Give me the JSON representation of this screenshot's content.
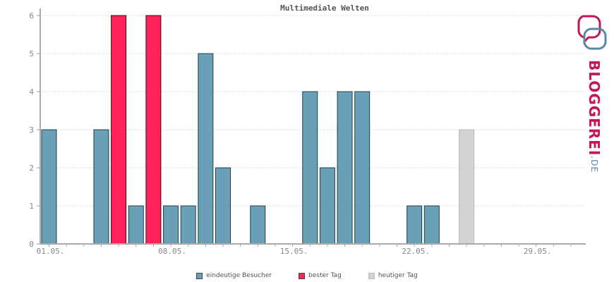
{
  "chart_data": {
    "type": "bar",
    "title": "Multimediale Welten",
    "ylim": [
      0,
      6
    ],
    "yticks": [
      0,
      1,
      2,
      3,
      4,
      5,
      6
    ],
    "grid": true,
    "legend_placement": "bottom",
    "xtick_labels": [
      {
        "day": 1,
        "label": "01.05."
      },
      {
        "day": 8,
        "label": "08.05."
      },
      {
        "day": 15,
        "label": "15.05."
      },
      {
        "day": 22,
        "label": "22.05."
      },
      {
        "day": 29,
        "label": "29.05."
      }
    ],
    "series": [
      {
        "name": "eindeutige Besucher",
        "color": "#6a9fb8"
      },
      {
        "name": "bester Tag",
        "color": "#ff2159"
      },
      {
        "name": "heutiger Tag",
        "color": "#d3d3d3"
      }
    ],
    "days": [
      1,
      2,
      3,
      4,
      5,
      6,
      7,
      8,
      9,
      10,
      11,
      12,
      13,
      14,
      15,
      16,
      17,
      18,
      19,
      20,
      21,
      22,
      23,
      24,
      25,
      26,
      27,
      28,
      29,
      30,
      31
    ],
    "values": [
      3,
      0,
      0,
      3,
      6,
      1,
      6,
      1,
      1,
      5,
      2,
      0,
      1,
      0,
      0,
      4,
      2,
      4,
      4,
      0,
      0,
      1,
      1,
      0,
      3,
      0,
      0,
      0,
      0,
      0,
      0
    ],
    "highlight": {
      "best": [
        5,
        7
      ],
      "today": [
        25
      ]
    }
  },
  "watermark": {
    "text": "BLOGGEREI",
    "suffix": ".DE"
  }
}
